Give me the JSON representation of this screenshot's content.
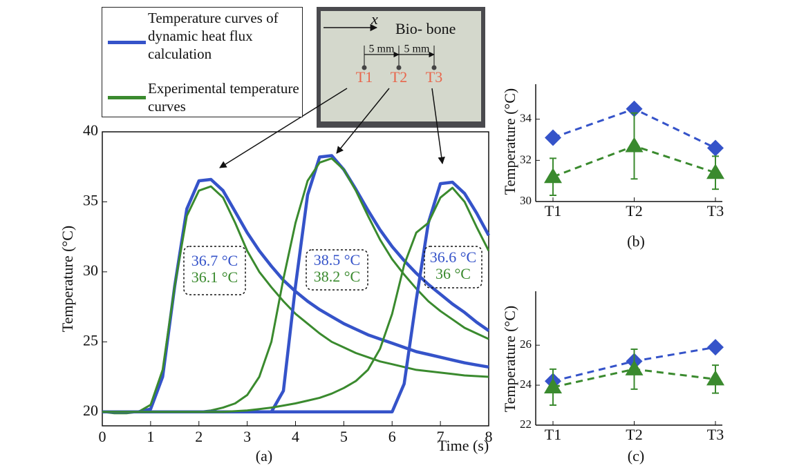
{
  "chart_data": [
    {
      "type": "line",
      "caption": "(a)",
      "xlabel": "Time (s)",
      "ylabel": "Temperature (°C)",
      "xlim": [
        0,
        8
      ],
      "ylim": [
        19,
        40
      ],
      "xticks": [
        0,
        1,
        2,
        3,
        4,
        5,
        6,
        7,
        8
      ],
      "yticks": [
        20,
        25,
        30,
        35,
        40
      ],
      "legend": [
        {
          "name": "Temperature curves of dynamic heat flux calculation",
          "color": "#3553c9"
        },
        {
          "name": "Experimental temperature curves",
          "color": "#3a8a2e"
        }
      ],
      "x": [
        0,
        0.25,
        0.5,
        0.75,
        1,
        1.25,
        1.5,
        1.75,
        2,
        2.25,
        2.5,
        2.75,
        3,
        3.25,
        3.5,
        3.75,
        4,
        4.25,
        4.5,
        4.75,
        5,
        5.25,
        5.5,
        5.75,
        6,
        6.25,
        6.5,
        6.75,
        7,
        7.25,
        7.5,
        7.75,
        8
      ],
      "series": [
        {
          "color": "#3553c9",
          "values": [
            20,
            20,
            20,
            20,
            20.2,
            22.5,
            29,
            34.5,
            36.5,
            36.6,
            35.8,
            34.3,
            32.8,
            31.5,
            30.4,
            29.4,
            28.6,
            27.9,
            27.3,
            26.8,
            26.3,
            25.9,
            25.5,
            25.2,
            24.9,
            24.6,
            24.3,
            24.1,
            23.9,
            23.7,
            23.5,
            23.35,
            23.2
          ]
        },
        {
          "color": "#3a8a2e",
          "values": [
            20,
            19.9,
            19.9,
            20,
            20.5,
            23,
            29,
            34,
            35.8,
            36.1,
            35.3,
            33.5,
            31.5,
            30,
            28.9,
            27.9,
            27,
            26.3,
            25.6,
            25,
            24.6,
            24.2,
            23.9,
            23.6,
            23.4,
            23.2,
            23,
            22.9,
            22.8,
            22.7,
            22.6,
            22.55,
            22.5
          ]
        },
        {
          "color": "#3553c9",
          "values": [
            20,
            20,
            20,
            20,
            20,
            20,
            20,
            20,
            20,
            20,
            20,
            20,
            20,
            20,
            20,
            21.5,
            29,
            35.5,
            38.2,
            38.3,
            37.3,
            35.9,
            34.4,
            33,
            31.8,
            30.8,
            29.9,
            29.1,
            28.4,
            27.7,
            27.1,
            26.4,
            25.8
          ]
        },
        {
          "color": "#3a8a2e",
          "values": [
            20,
            20,
            20,
            20,
            20,
            20,
            20,
            20,
            20,
            20.1,
            20.3,
            20.6,
            21.2,
            22.5,
            25,
            29.5,
            33.5,
            36.5,
            37.8,
            38.1,
            37.3,
            35.8,
            34,
            32.3,
            30.9,
            29.8,
            28.8,
            27.9,
            27.2,
            26.6,
            26,
            25.6,
            25.2
          ]
        },
        {
          "color": "#3553c9",
          "values": [
            20,
            20,
            20,
            20,
            20,
            20,
            20,
            20,
            20,
            20,
            20,
            20,
            20,
            20,
            20,
            20,
            20,
            20,
            20,
            20,
            20,
            20,
            20,
            20,
            20,
            22,
            28,
            33.5,
            36.3,
            36.4,
            35.6,
            34.2,
            32.6
          ]
        },
        {
          "color": "#3a8a2e",
          "values": [
            20,
            20,
            20,
            20,
            20,
            20,
            20,
            20,
            20,
            20,
            20,
            20.05,
            20.1,
            20.2,
            20.3,
            20.45,
            20.6,
            20.8,
            21,
            21.3,
            21.7,
            22.2,
            23,
            24.5,
            27,
            30.5,
            32.8,
            33.5,
            35.3,
            36,
            35,
            33.2,
            31.5
          ]
        }
      ],
      "annotations": [
        {
          "calculated": "36.7 °C",
          "experimental": "36.1 °C"
        },
        {
          "calculated": "38.5 °C",
          "experimental": "38.2 °C"
        },
        {
          "calculated": "36.6 °C",
          "experimental": "36 °C"
        }
      ]
    },
    {
      "type": "errorbar",
      "caption": "(b)",
      "ylabel": "Temperature (°C)",
      "categories": [
        "T1",
        "T2",
        "T3"
      ],
      "ylim": [
        30,
        35.7
      ],
      "yticks": [
        30,
        32,
        34
      ],
      "series": [
        {
          "color": "#3553c9",
          "marker": "diamond",
          "values": [
            33.1,
            34.5,
            32.6
          ]
        },
        {
          "color": "#3a8a2e",
          "marker": "triangle",
          "values": [
            31.2,
            32.7,
            31.4
          ],
          "errors": [
            0.9,
            1.6,
            0.8
          ]
        }
      ]
    },
    {
      "type": "errorbar",
      "caption": "(c)",
      "ylabel": "Temperature (°C)",
      "categories": [
        "T1",
        "T2",
        "T3"
      ],
      "ylim": [
        22,
        28.7
      ],
      "yticks": [
        22,
        24,
        26
      ],
      "series": [
        {
          "color": "#3553c9",
          "marker": "diamond",
          "values": [
            24.2,
            25.2,
            25.9
          ]
        },
        {
          "color": "#3a8a2e",
          "marker": "triangle",
          "values": [
            23.9,
            24.8,
            24.3
          ],
          "errors": [
            0.9,
            1,
            0.7
          ]
        }
      ]
    }
  ],
  "photo": {
    "axis_label": "x",
    "material": "Bio- bone",
    "spacings": [
      "5 mm",
      "5 mm"
    ],
    "points": [
      "T1",
      "T2",
      "T3"
    ]
  }
}
